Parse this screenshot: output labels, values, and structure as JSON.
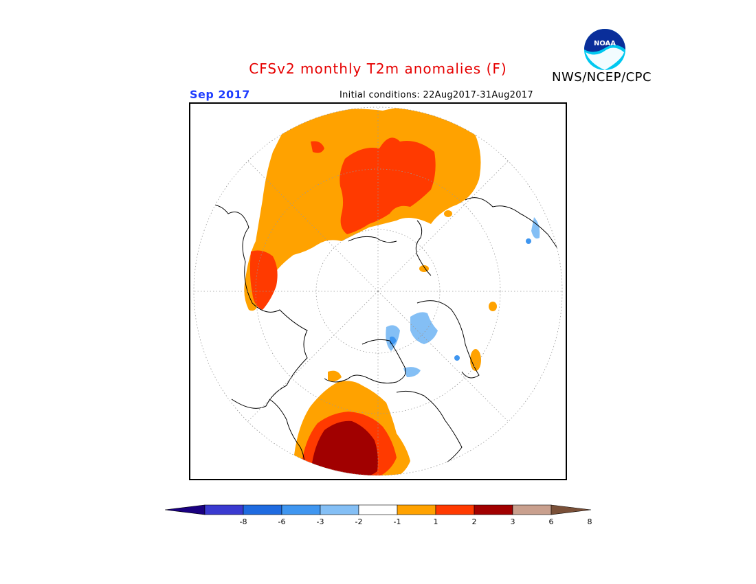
{
  "header": {
    "title": "CFSv2 monthly T2m anomalies (F)",
    "agency": "NWS/NCEP/CPC",
    "logo_text": "NOAA",
    "month": "Sep 2017",
    "initial_conditions": "Initial conditions: 22Aug2017-31Aug2017"
  },
  "legend": {
    "tick_labels": [
      "-8",
      "-6",
      "-3",
      "-2",
      "-1",
      "1",
      "2",
      "3",
      "6",
      "8"
    ],
    "colors": [
      "#1a0080",
      "#3a3ad0",
      "#1f6be0",
      "#3f96f0",
      "#84bff5",
      "#ffffff",
      "#ffa200",
      "#ff3a00",
      "#a10000",
      "#c9a08e",
      "#7a5038"
    ]
  },
  "colors": {
    "title": "#e60000",
    "month": "#1e3cff",
    "anom_1_2": "#ffa200",
    "anom_2_3": "#ff3a00",
    "anom_3_6": "#a10000",
    "anom_neg_1_2": "#84bff5",
    "anom_neg_2_3": "#3f96f0",
    "anom_neg_3_6": "#1f6be0"
  }
}
